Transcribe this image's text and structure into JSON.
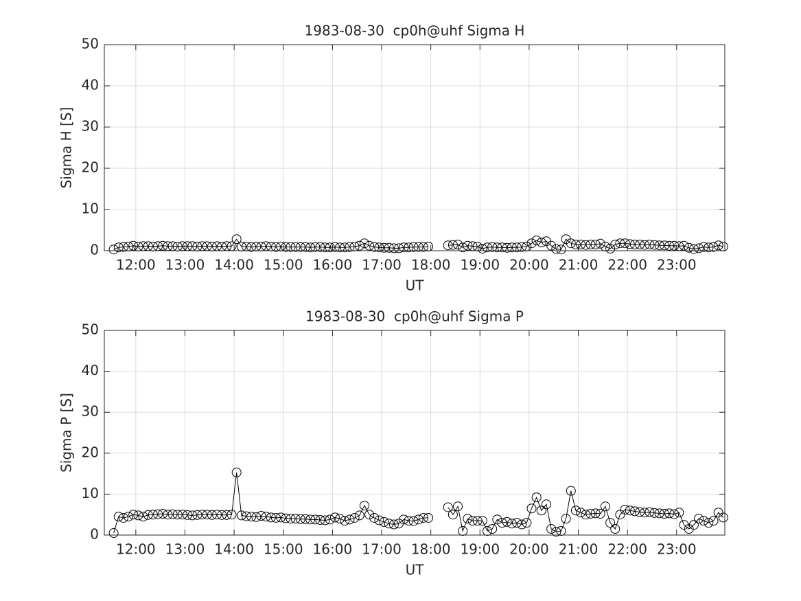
{
  "chart_data": [
    {
      "type": "line",
      "title": "1983-08-30  cp0h@uhf Sigma H",
      "xlabel": "UT",
      "ylabel": "Sigma H [S]",
      "x": [
        11.55,
        11.65,
        11.75,
        11.85,
        11.95,
        12.05,
        12.15,
        12.25,
        12.35,
        12.45,
        12.55,
        12.65,
        12.75,
        12.85,
        12.95,
        13.05,
        13.15,
        13.25,
        13.35,
        13.45,
        13.55,
        13.65,
        13.75,
        13.85,
        13.95,
        14.05,
        14.15,
        14.25,
        14.35,
        14.45,
        14.55,
        14.65,
        14.75,
        14.85,
        14.95,
        15.05,
        15.15,
        15.25,
        15.35,
        15.45,
        15.55,
        15.65,
        15.75,
        15.85,
        15.95,
        16.05,
        16.15,
        16.25,
        16.35,
        16.45,
        16.55,
        16.65,
        16.75,
        16.85,
        16.95,
        17.05,
        17.15,
        17.25,
        17.35,
        17.45,
        17.55,
        17.65,
        17.75,
        17.85,
        17.95,
        18.05,
        18.15,
        18.25,
        18.35,
        18.45,
        18.55,
        18.65,
        18.75,
        18.85,
        18.95,
        19.05,
        19.15,
        19.25,
        19.35,
        19.45,
        19.55,
        19.65,
        19.75,
        19.85,
        19.95,
        20.05,
        20.15,
        20.25,
        20.35,
        20.45,
        20.55,
        20.65,
        20.75,
        20.85,
        20.95,
        21.05,
        21.15,
        21.25,
        21.35,
        21.45,
        21.55,
        21.65,
        21.75,
        21.85,
        21.95,
        22.05,
        22.15,
        22.25,
        22.35,
        22.45,
        22.55,
        22.65,
        22.75,
        22.85,
        22.95,
        23.05,
        23.15,
        23.25,
        23.35,
        23.45,
        23.55,
        23.65,
        23.75,
        23.85,
        23.95
      ],
      "series": [
        {
          "color": "#000000",
          "marker": "circle",
          "values": [
            0.3,
            0.8,
            0.9,
            1.0,
            1.2,
            1.0,
            1.1,
            1.1,
            1.0,
            1.1,
            1.2,
            1.1,
            1.1,
            1.0,
            1.1,
            1.1,
            1.1,
            1.0,
            1.1,
            1.1,
            1.0,
            1.1,
            1.0,
            1.1,
            1.1,
            2.8,
            1.0,
            1.0,
            0.9,
            1.0,
            1.0,
            1.1,
            1.0,
            0.9,
            1.0,
            0.9,
            0.9,
            0.9,
            0.9,
            0.9,
            0.8,
            0.9,
            0.9,
            0.8,
            0.8,
            0.9,
            0.8,
            0.8,
            0.9,
            1.0,
            1.2,
            1.8,
            1.2,
            0.9,
            0.8,
            0.7,
            0.7,
            0.6,
            0.6,
            0.8,
            0.8,
            0.9,
            0.9,
            0.9,
            1.0,
            null,
            null,
            null,
            1.3,
            1.4,
            1.5,
            0.8,
            1.2,
            1.1,
            1.0,
            0.5,
            0.8,
            0.9,
            0.8,
            0.8,
            0.7,
            0.8,
            0.8,
            0.9,
            1.0,
            1.8,
            2.5,
            2.0,
            2.3,
            1.2,
            0.4,
            0.3,
            2.8,
            1.8,
            1.5,
            1.5,
            1.4,
            1.5,
            1.5,
            1.7,
            1.0,
            0.5,
            1.5,
            1.8,
            1.8,
            1.6,
            1.5,
            1.5,
            1.4,
            1.5,
            1.4,
            1.3,
            1.3,
            1.2,
            1.2,
            1.1,
            1.2,
            0.7,
            0.4,
            0.6,
            0.9,
            0.8,
            0.9,
            1.3,
            1.0
          ]
        }
      ],
      "xlim": [
        11.36,
        23.98
      ],
      "xticks": [
        {
          "value": 12,
          "label": "12:00"
        },
        {
          "value": 13,
          "label": "13:00"
        },
        {
          "value": 14,
          "label": "14:00"
        },
        {
          "value": 15,
          "label": "15:00"
        },
        {
          "value": 16,
          "label": "16:00"
        },
        {
          "value": 17,
          "label": "17:00"
        },
        {
          "value": 18,
          "label": "18:00"
        },
        {
          "value": 19,
          "label": "19:00"
        },
        {
          "value": 20,
          "label": "20:00"
        },
        {
          "value": 21,
          "label": "21:00"
        },
        {
          "value": 22,
          "label": "22:00"
        },
        {
          "value": 23,
          "label": "23:00"
        }
      ],
      "ylim": [
        0,
        50
      ],
      "yticks": [
        0,
        10,
        20,
        30,
        40,
        50
      ],
      "grid": true
    },
    {
      "type": "line",
      "title": "1983-08-30  cp0h@uhf Sigma P",
      "xlabel": "UT",
      "ylabel": "Sigma P [S]",
      "x": [
        11.55,
        11.65,
        11.75,
        11.85,
        11.95,
        12.05,
        12.15,
        12.25,
        12.35,
        12.45,
        12.55,
        12.65,
        12.75,
        12.85,
        12.95,
        13.05,
        13.15,
        13.25,
        13.35,
        13.45,
        13.55,
        13.65,
        13.75,
        13.85,
        13.95,
        14.05,
        14.15,
        14.25,
        14.35,
        14.45,
        14.55,
        14.65,
        14.75,
        14.85,
        14.95,
        15.05,
        15.15,
        15.25,
        15.35,
        15.45,
        15.55,
        15.65,
        15.75,
        15.85,
        15.95,
        16.05,
        16.15,
        16.25,
        16.35,
        16.45,
        16.55,
        16.65,
        16.75,
        16.85,
        16.95,
        17.05,
        17.15,
        17.25,
        17.35,
        17.45,
        17.55,
        17.65,
        17.75,
        17.85,
        17.95,
        18.05,
        18.15,
        18.25,
        18.35,
        18.45,
        18.55,
        18.65,
        18.75,
        18.85,
        18.95,
        19.05,
        19.15,
        19.25,
        19.35,
        19.45,
        19.55,
        19.65,
        19.75,
        19.85,
        19.95,
        20.05,
        20.15,
        20.25,
        20.35,
        20.45,
        20.55,
        20.65,
        20.75,
        20.85,
        20.95,
        21.05,
        21.15,
        21.25,
        21.35,
        21.45,
        21.55,
        21.65,
        21.75,
        21.85,
        21.95,
        22.05,
        22.15,
        22.25,
        22.35,
        22.45,
        22.55,
        22.65,
        22.75,
        22.85,
        22.95,
        23.05,
        23.15,
        23.25,
        23.35,
        23.45,
        23.55,
        23.65,
        23.75,
        23.85,
        23.95
      ],
      "series": [
        {
          "color": "#000000",
          "marker": "circle",
          "values": [
            0.5,
            4.5,
            4.2,
            4.5,
            5.0,
            4.8,
            4.5,
            4.9,
            5.0,
            5.1,
            5.2,
            5.0,
            5.1,
            5.0,
            5.0,
            4.9,
            4.8,
            4.9,
            5.0,
            5.0,
            4.9,
            5.0,
            4.9,
            4.9,
            5.0,
            15.3,
            4.8,
            4.6,
            4.5,
            4.4,
            4.7,
            4.5,
            4.3,
            4.2,
            4.3,
            4.1,
            4.0,
            4.0,
            3.9,
            3.9,
            3.8,
            3.8,
            3.7,
            3.6,
            3.8,
            4.3,
            4.0,
            3.5,
            3.8,
            4.2,
            4.8,
            7.2,
            5.0,
            4.2,
            3.6,
            3.2,
            2.8,
            2.6,
            2.8,
            3.8,
            3.5,
            3.4,
            3.8,
            4.2,
            4.2,
            null,
            null,
            null,
            6.8,
            5.0,
            7.0,
            1.0,
            4.0,
            3.5,
            3.5,
            3.5,
            1.0,
            1.5,
            3.8,
            3.0,
            3.2,
            2.8,
            3.0,
            2.6,
            3.0,
            6.5,
            9.2,
            6.0,
            7.5,
            1.5,
            0.8,
            1.0,
            4.0,
            10.8,
            6.0,
            5.5,
            5.0,
            5.2,
            5.3,
            5.2,
            7.0,
            3.0,
            1.5,
            5.0,
            6.2,
            6.0,
            5.8,
            5.6,
            5.5,
            5.6,
            5.4,
            5.3,
            5.2,
            5.3,
            5.1,
            5.5,
            2.5,
            1.5,
            2.5,
            4.0,
            3.5,
            3.0,
            3.5,
            5.5,
            4.3
          ]
        }
      ],
      "xlim": [
        11.36,
        23.98
      ],
      "xticks": [
        {
          "value": 12,
          "label": "12:00"
        },
        {
          "value": 13,
          "label": "13:00"
        },
        {
          "value": 14,
          "label": "14:00"
        },
        {
          "value": 15,
          "label": "15:00"
        },
        {
          "value": 16,
          "label": "16:00"
        },
        {
          "value": 17,
          "label": "17:00"
        },
        {
          "value": 18,
          "label": "18:00"
        },
        {
          "value": 19,
          "label": "19:00"
        },
        {
          "value": 20,
          "label": "20:00"
        },
        {
          "value": 21,
          "label": "21:00"
        },
        {
          "value": 22,
          "label": "22:00"
        },
        {
          "value": 23,
          "label": "23:00"
        }
      ],
      "ylim": [
        0,
        50
      ],
      "yticks": [
        0,
        10,
        20,
        30,
        40,
        50
      ],
      "grid": true
    }
  ]
}
